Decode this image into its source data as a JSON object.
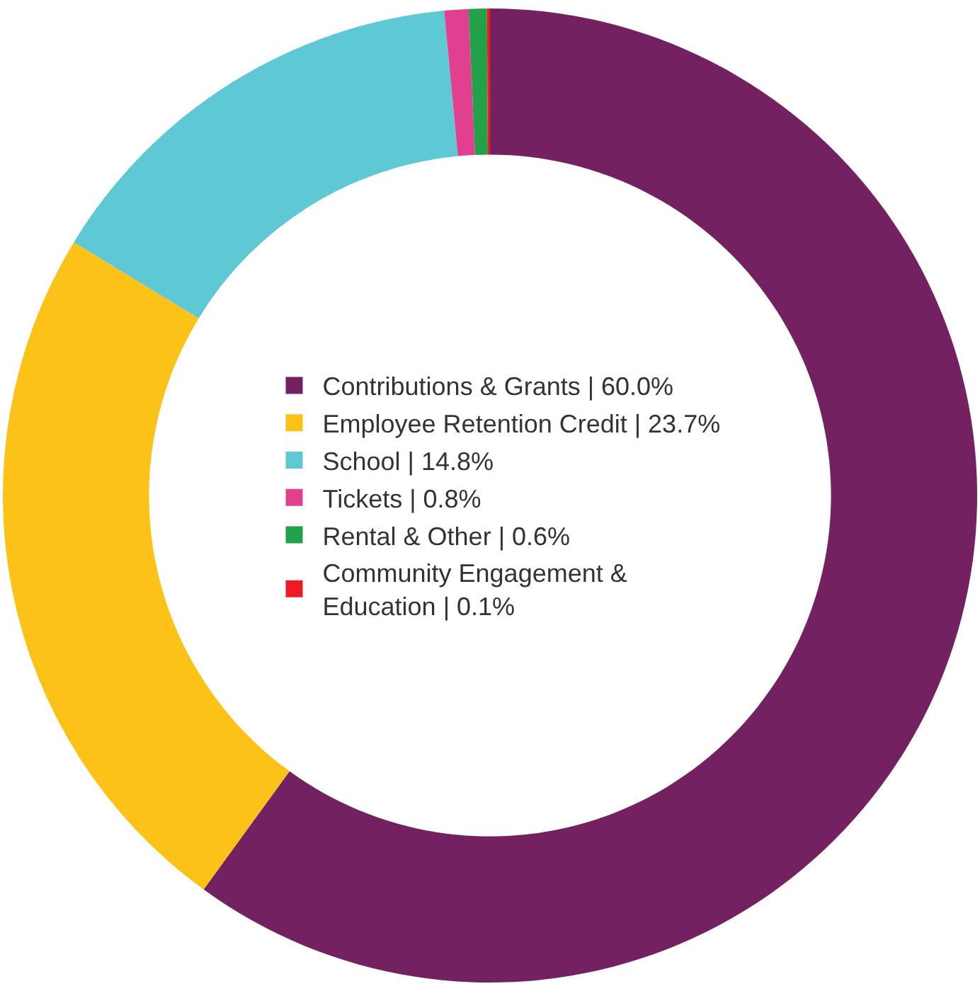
{
  "chart_data": {
    "type": "donut",
    "categories": [
      "Contributions & Grants | 60.0%",
      "Employee Retention Credit | 23.7%",
      "School | 14.8%",
      "Tickets | 0.8%",
      "Rental & Other | 0.6%",
      "Community Engagement & Education | 0.1%"
    ],
    "values": [
      60.0,
      23.7,
      14.8,
      0.8,
      0.6,
      0.1
    ],
    "colors": [
      "#742162",
      "#fdc218",
      "#5ec8d5",
      "#e0408f",
      "#23a04a",
      "#ed1c24"
    ],
    "legend": "center"
  }
}
